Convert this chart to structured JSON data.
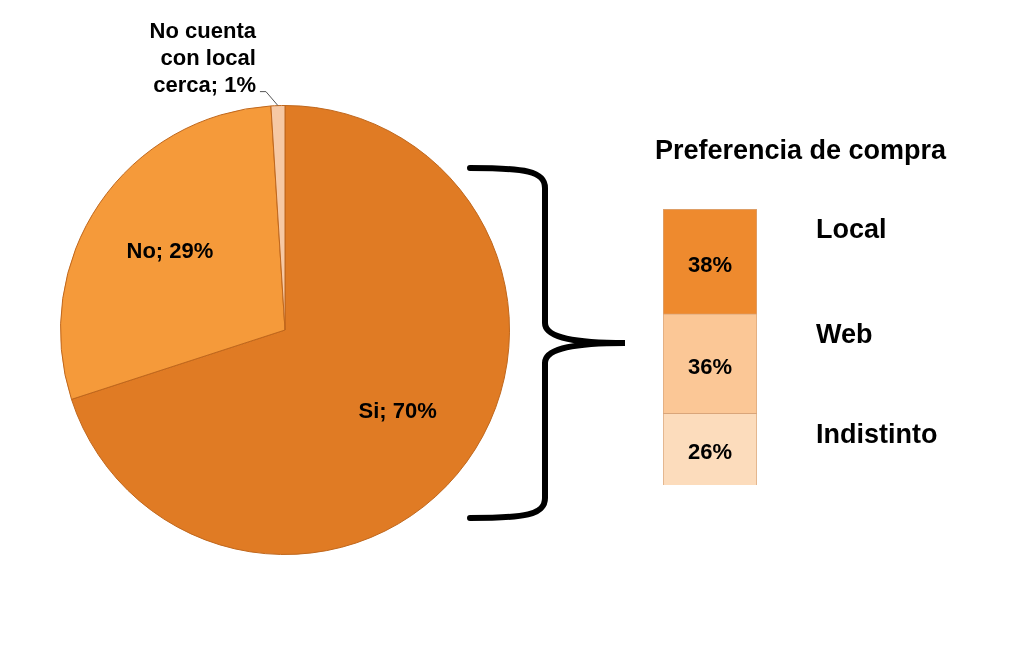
{
  "chart_data": [
    {
      "type": "pie",
      "categories": [
        "Si",
        "No",
        "No cuenta con local cerca"
      ],
      "values": [
        70,
        29,
        1
      ],
      "colors": [
        "#e07b24",
        "#f59a3a",
        "#f6c8a4"
      ],
      "value_labels": [
        "70%",
        "29%",
        "1%"
      ],
      "legend": false
    },
    {
      "type": "bar",
      "title": "Preferencia de compra",
      "stacked": true,
      "categories": [
        null
      ],
      "legend": false,
      "series": [
        {
          "name": "Indistinto",
          "color": "#fcdcbc",
          "values": [
            26
          ],
          "value_labels": [
            "26%"
          ]
        },
        {
          "name": "Web",
          "color": "#fbc796",
          "values": [
            36
          ],
          "value_labels": [
            "36%"
          ]
        },
        {
          "name": "Local",
          "color": "#ee8a2e",
          "values": [
            38
          ],
          "value_labels": [
            "38%"
          ]
        }
      ]
    }
  ]
}
